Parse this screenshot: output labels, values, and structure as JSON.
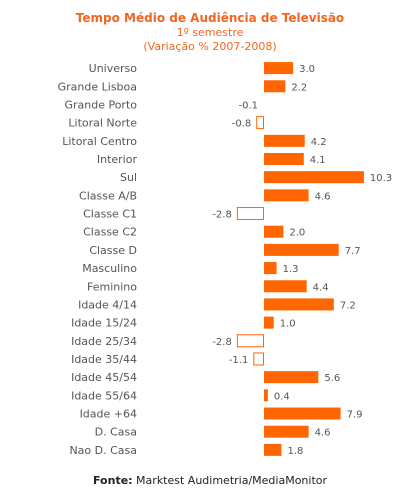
{
  "chart_data": {
    "type": "bar",
    "orientation": "horizontal",
    "title": "Tempo Médio de Audiência  de Televisão",
    "subtitle_1": "1º semestre",
    "subtitle_2": "(Variação % 2007-2008)",
    "categories": [
      "Universo",
      "Grande Lisboa",
      "Grande Porto",
      "Litoral Norte",
      "Litoral Centro",
      "Interior",
      "Sul",
      "Classe A/B",
      "Classe C1",
      "Classe C2",
      "Classe D",
      "Masculino",
      "Feminino",
      "Idade 4/14",
      "Idade 15/24",
      "Idade 25/34",
      "Idade 35/44",
      "Idade 45/54",
      "Idade 55/64",
      "Idade +64",
      "D. Casa",
      "Nao D. Casa"
    ],
    "values": [
      3.0,
      2.2,
      -0.1,
      -0.8,
      4.2,
      4.1,
      10.3,
      4.6,
      -2.8,
      2.0,
      7.7,
      1.3,
      4.4,
      7.2,
      1.0,
      -2.8,
      -1.1,
      5.6,
      0.4,
      7.9,
      4.6,
      1.8
    ],
    "value_labels": [
      "3.0",
      "2.2",
      "-0.1",
      "-0.8",
      "4.2",
      "4.1",
      "10.3",
      "4.6",
      "-2.8",
      "2.0",
      "7.7",
      "1.3",
      "4.4",
      "7.2",
      "1.0",
      "-2.8",
      "-1.1",
      "5.6",
      "0.4",
      "7.9",
      "4.6",
      "1.8"
    ],
    "colors": {
      "positive": "#ff6600",
      "negative_fill": "#ffffff",
      "negative_stroke": "#ff6600",
      "title": "#f26522"
    },
    "grid": false,
    "legend": "none"
  },
  "source": {
    "label": "Fonte:",
    "text": " Marktest Audimetria/MediaMonitor"
  }
}
